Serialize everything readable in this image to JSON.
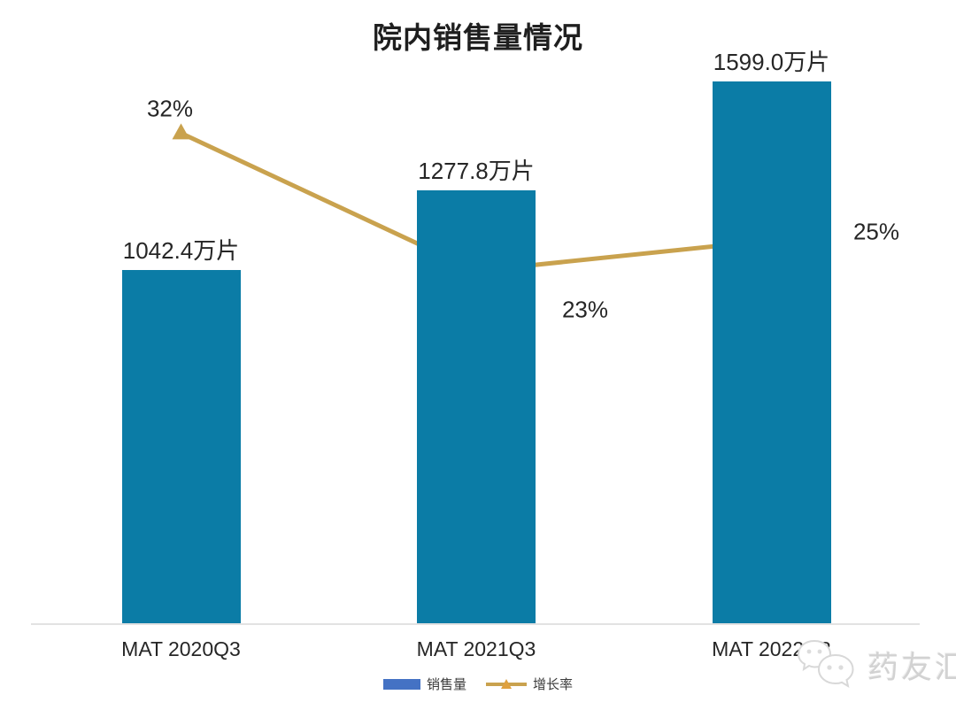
{
  "title": "院内销售量情况",
  "watermark": {
    "brand_text": "药友汇"
  },
  "legend": {
    "sales_label": "销售量",
    "growth_label": "增长率"
  },
  "colors": {
    "bar": "#0b7ca6",
    "line": "#c9a24e",
    "legend_bar_swatch": "#4472c4",
    "legend_marker": "#dfa13f",
    "axis_line": "#e2e2e2",
    "text": "#262626",
    "watermark": "#d2d2d2"
  },
  "chart_data": {
    "type": "bar",
    "title": "院内销售量情况",
    "categories": [
      "MAT 2020Q3",
      "MAT 2021Q3",
      "MAT 2022Q3"
    ],
    "series": [
      {
        "name": "销售量",
        "chart_type": "bar",
        "unit": "万片",
        "values": [
          1042.4,
          1277.8,
          1599.0
        ],
        "data_labels": [
          "1042.4万片",
          "1277.8万片",
          "1599.0万片"
        ],
        "color": "#0b7ca6"
      },
      {
        "name": "增长率",
        "chart_type": "line",
        "unit": "%",
        "values": [
          32,
          23,
          25
        ],
        "data_labels": [
          "32%",
          "23%",
          "25%"
        ],
        "color": "#c9a24e"
      }
    ],
    "xlabel": "",
    "ylabel": "",
    "ylim_primary": [
      0,
      1700
    ],
    "grid": false,
    "legend_position": "bottom",
    "axes_ticks_visible": false
  }
}
